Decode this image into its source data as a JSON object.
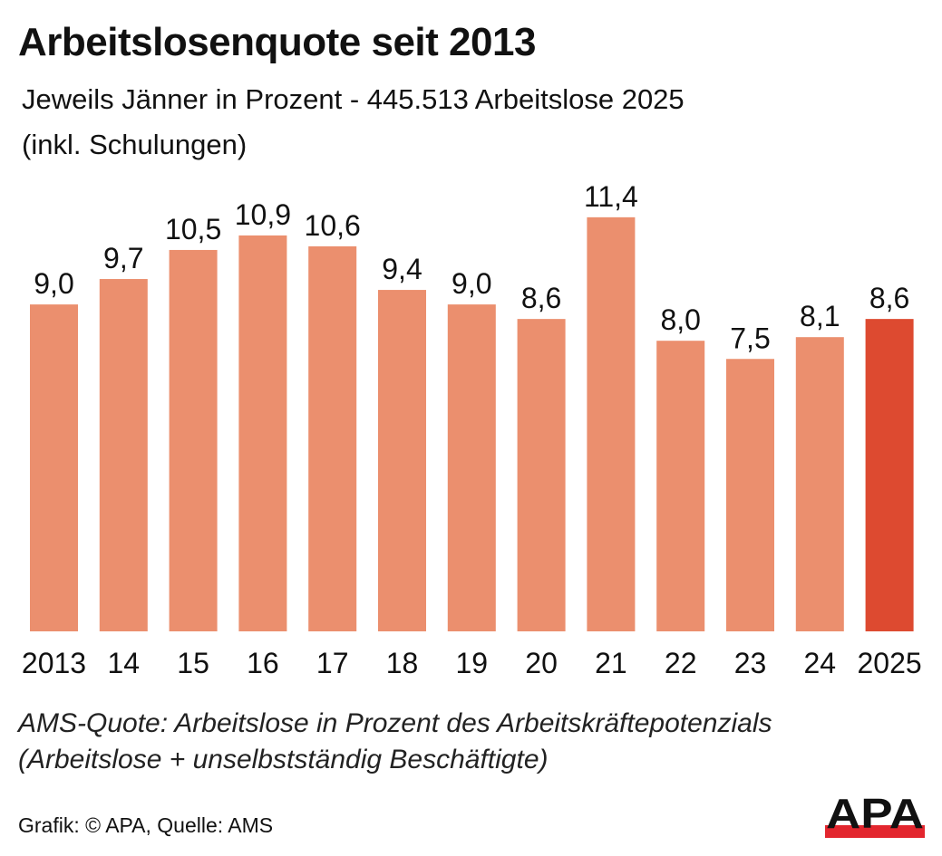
{
  "title": "Arbeitslosenquote seit 2013",
  "subtitle_line1": "Jeweils Jänner in Prozent - 445.513 Arbeitslose 2025",
  "subtitle_line2": "(inkl. Schulungen)",
  "footnote_line1": "AMS-Quote: Arbeitslose in Prozent des Arbeitskräftepotenzials",
  "footnote_line2": "(Arbeitslose + unselbstständig Beschäftigte)",
  "credit": "Grafik: © APA, Quelle: AMS",
  "logo_text": "APA",
  "colors": {
    "bar": "#EB8F6E",
    "highlight": "#DD4A30",
    "logo_red": "#E3262E"
  },
  "chart_data": {
    "type": "bar",
    "title": "Arbeitslosenquote seit 2013",
    "categories": [
      "2013",
      "14",
      "15",
      "16",
      "17",
      "18",
      "19",
      "20",
      "21",
      "22",
      "23",
      "24",
      "2025"
    ],
    "values": [
      9.0,
      9.7,
      10.5,
      10.9,
      10.6,
      9.4,
      9.0,
      8.6,
      11.4,
      8.0,
      7.5,
      8.1,
      8.6
    ],
    "data_labels": [
      "9,0",
      "9,7",
      "10,5",
      "10,9",
      "10,6",
      "9,4",
      "9,0",
      "8,6",
      "11,4",
      "8,0",
      "7,5",
      "8,1",
      "8,6"
    ],
    "highlight_index": 12,
    "ylim": [
      0,
      11.4
    ],
    "grid": false,
    "xlabel": "",
    "ylabel": ""
  }
}
